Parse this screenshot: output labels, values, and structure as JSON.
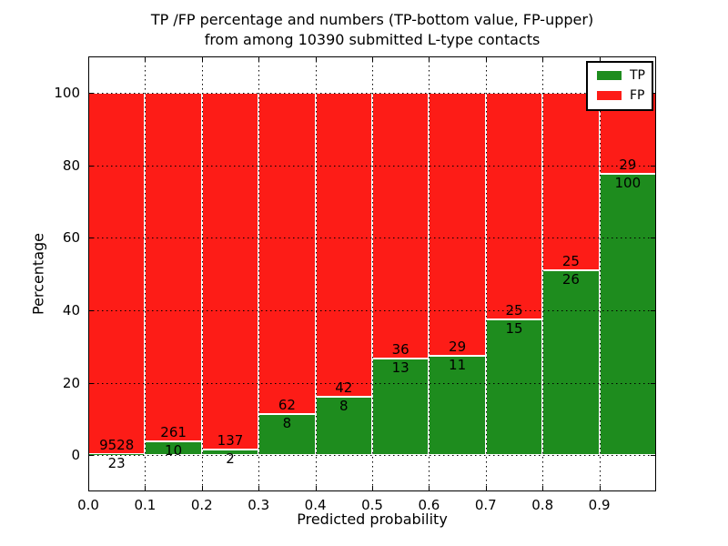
{
  "figure": {
    "title_line1": "TP /FP percentage and numbers (TP-bottom value, FP-upper)",
    "title_line2": "from among 10390 submitted L-type contacts",
    "background": "#ffffff"
  },
  "chart_data": {
    "type": "bar",
    "variant": "stacked-percentage",
    "title": "TP /FP percentage and numbers (TP-bottom value, FP-upper) from among 10390 submitted L-type contacts",
    "xlabel": "Predicted probability",
    "ylabel": "Percentage",
    "xlim": [
      0.0,
      1.0
    ],
    "ylim": [
      -10,
      110
    ],
    "x_tick_labels": [
      "0.0",
      "0.1",
      "0.2",
      "0.3",
      "0.4",
      "0.5",
      "0.6",
      "0.7",
      "0.8",
      "0.9"
    ],
    "y_tick_values": [
      0,
      20,
      40,
      60,
      80,
      100
    ],
    "bin_starts": [
      0.0,
      0.1,
      0.2,
      0.3,
      0.4,
      0.5,
      0.6,
      0.7,
      0.8,
      0.9
    ],
    "bin_width": 0.1,
    "grid": {
      "style": "dotted",
      "color": "#000000",
      "on": true
    },
    "legend": {
      "position": "upper-right",
      "entries": [
        "TP",
        "FP"
      ]
    },
    "series": [
      {
        "name": "TP",
        "color": "#1e8c1e",
        "counts": [
          23,
          10,
          2,
          8,
          8,
          13,
          11,
          15,
          26,
          100
        ]
      },
      {
        "name": "FP",
        "color": "#fd1c17",
        "counts": [
          9528,
          261,
          137,
          62,
          42,
          36,
          29,
          25,
          25,
          29
        ]
      }
    ],
    "tp_percentages": [
      0.24,
      3.69,
      1.44,
      11.43,
      16.0,
      26.53,
      27.5,
      37.5,
      50.98,
      77.52
    ],
    "total_contacts": 10390
  }
}
